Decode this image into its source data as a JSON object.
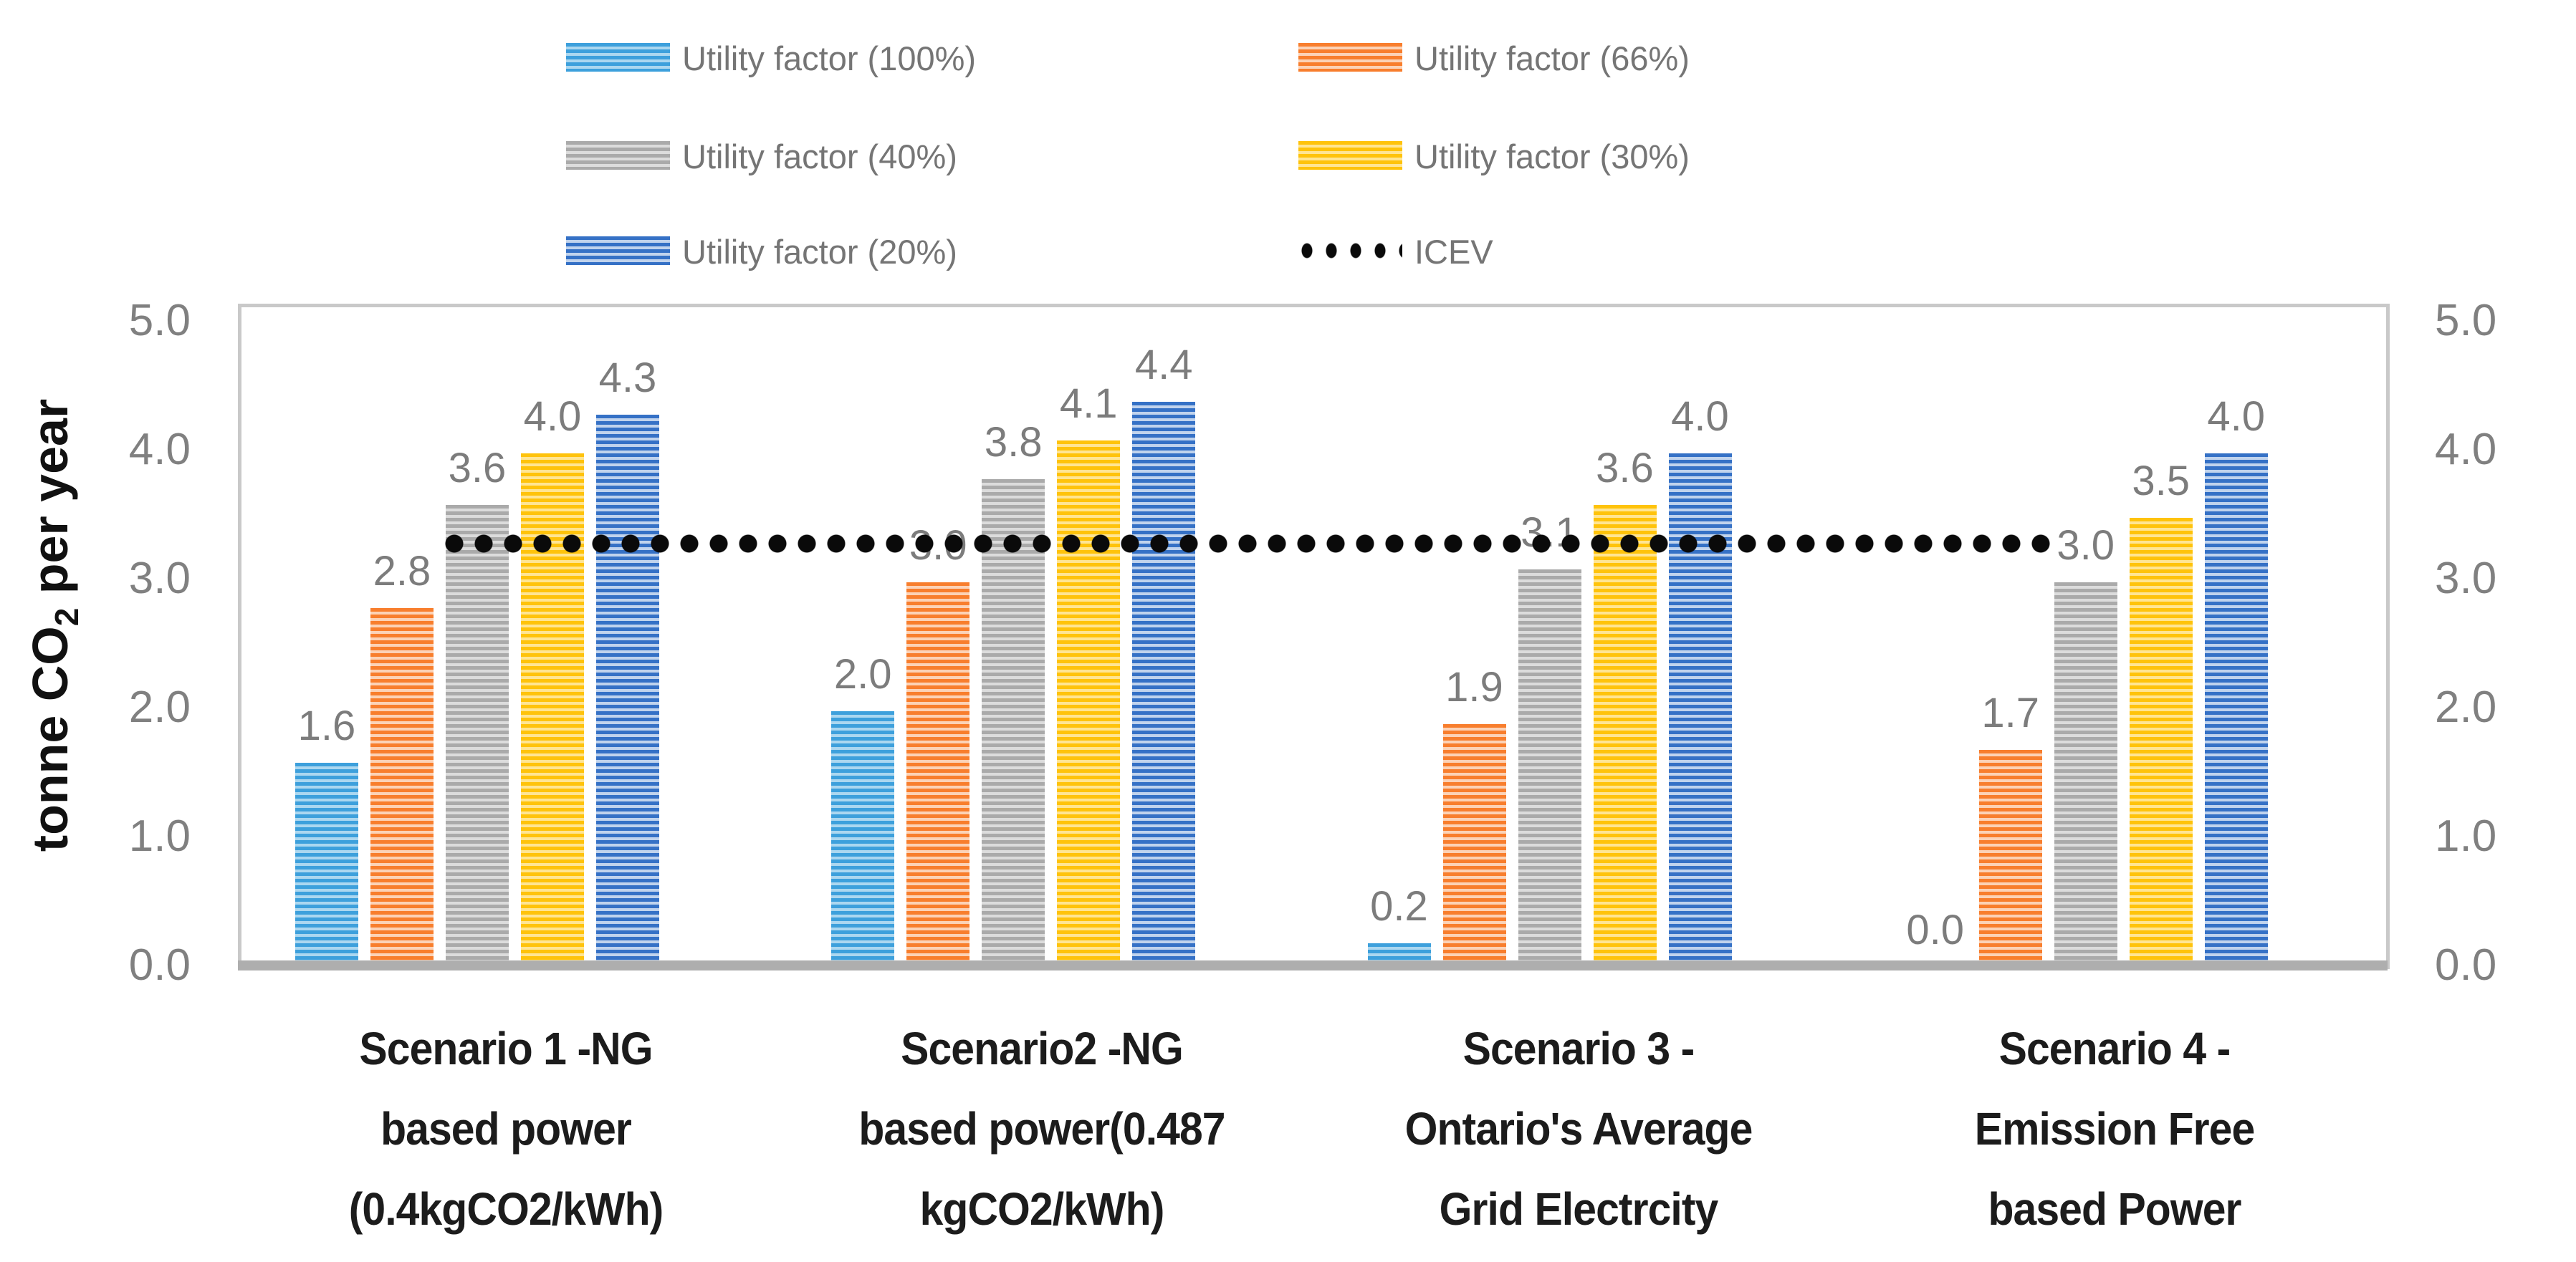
{
  "chart_data": {
    "type": "bar",
    "title": "",
    "ylabel": {
      "prefix": "tonne CO",
      "sub": "2",
      "suffix": " per year"
    },
    "yticks": [
      "5.0",
      "4.0",
      "3.0",
      "2.0",
      "1.0",
      "0.0"
    ],
    "ylim": [
      0.0,
      5.0
    ],
    "grid": false,
    "legend_position": "top",
    "bar_pattern": "horizontal-stripes",
    "categories": [
      [
        "Scenario 1 -NG",
        "based power",
        "(0.4kgCO2/kWh)"
      ],
      [
        "Scenario2 -NG",
        "based power(0.487",
        "kgCO2/kWh)"
      ],
      [
        "Scenario 3 -",
        "Ontario's Average",
        "Grid Electrcity"
      ],
      [
        "Scenario 4 -",
        "Emission Free",
        "based Power"
      ]
    ],
    "series": [
      {
        "name": "Utility factor (100%)",
        "color": "#3da0dc",
        "stripe_light": "#abd7f0",
        "values": [
          1.6,
          2.0,
          0.2,
          0.0
        ]
      },
      {
        "name": "Utility factor (66%)",
        "color": "#f87e2d",
        "stripe_light": "#fcd2b6",
        "values": [
          2.8,
          3.0,
          1.9,
          1.7
        ]
      },
      {
        "name": "Utility factor (40%)",
        "color": "#aaaaaa",
        "stripe_light": "#dcdcdc",
        "values": [
          3.6,
          3.8,
          3.1,
          3.0
        ]
      },
      {
        "name": "Utility factor (30%)",
        "color": "#ffc30b",
        "stripe_light": "#ffe593",
        "values": [
          4.0,
          4.1,
          3.6,
          3.5
        ]
      },
      {
        "name": "Utility factor (20%)",
        "color": "#3571c6",
        "stripe_light": "#c0d3ed",
        "values": [
          4.3,
          4.4,
          4.0,
          4.0
        ]
      }
    ],
    "line_series": {
      "name": "ICEV",
      "value": 3.3,
      "color": "#0a0a0a",
      "style": "dotted"
    }
  },
  "colors": {
    "tick_label": "#808080",
    "data_label": "#7c7c7c",
    "legend_text": "#757575",
    "category_label": "#1c1c1c",
    "axis_line": "#aeaeae",
    "plot_border": "#c9c9c9",
    "background": "#ffffff"
  }
}
